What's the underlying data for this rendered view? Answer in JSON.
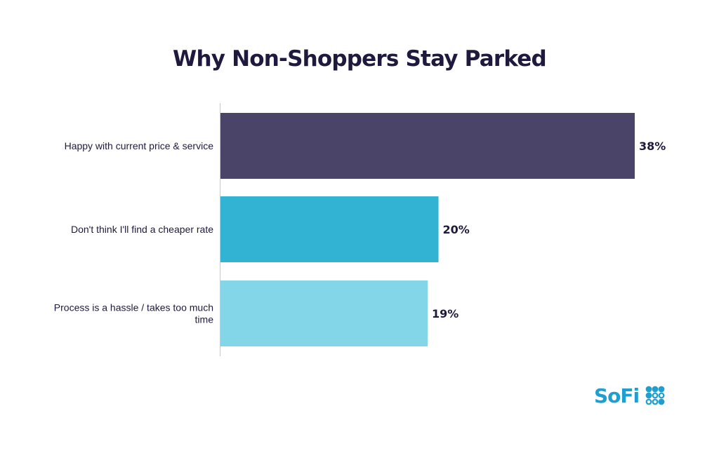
{
  "chart_data": {
    "type": "bar",
    "orientation": "horizontal",
    "title": "Why Non-Shoppers Stay Parked",
    "categories": [
      [
        "Happy with current price & service"
      ],
      [
        "Don't think I'll find a cheaper rate"
      ],
      [
        "Process is a hassle / takes too much",
        "time"
      ]
    ],
    "values": [
      38,
      20,
      19
    ],
    "value_labels": [
      "38%",
      "20%",
      "19%"
    ],
    "colors": [
      "#4a4468",
      "#33b3d4",
      "#83d5e8"
    ],
    "xlim": [
      0,
      38
    ],
    "grid": false
  },
  "logo": {
    "text": "SoFi",
    "color": "#1f9fd0"
  }
}
